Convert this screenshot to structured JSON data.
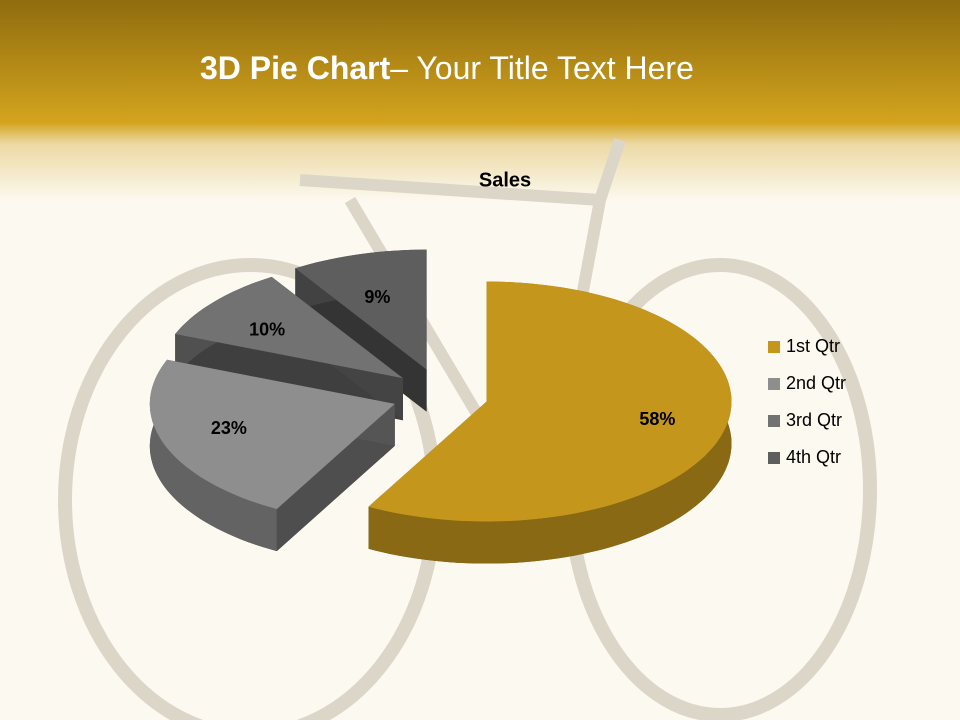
{
  "slide": {
    "title_strong": "3D Pie Chart",
    "title_rest": "– Your Title Text Here"
  },
  "chart_data": {
    "type": "pie",
    "title": "Sales",
    "categories": [
      "1st Qtr",
      "2nd Qtr",
      "3rd Qtr",
      "4th Qtr"
    ],
    "values": [
      58,
      23,
      10,
      9
    ],
    "value_labels": [
      "58%",
      "23%",
      "10%",
      "9%"
    ],
    "colors": [
      "#c4961c",
      "#8e8e8e",
      "#727272",
      "#5e5e5e"
    ],
    "legend": "right"
  }
}
